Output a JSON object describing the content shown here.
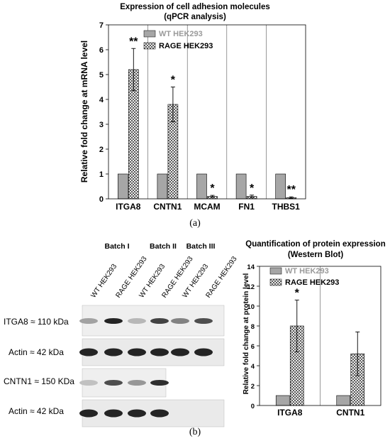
{
  "panel_a_label": "(a)",
  "panel_b_label": "(b)",
  "chart_data": [
    {
      "type": "bar",
      "title": "Expression of cell adhesion molecules",
      "subtitle": "(qPCR analysis)",
      "xlabel": "",
      "ylabel": "Relative fold change at mRNA level",
      "categories": [
        "ITGA8",
        "CNTN1",
        "MCAM",
        "FN1",
        "THBS1"
      ],
      "ylim": [
        0,
        7
      ],
      "yticks": [
        "0",
        "1",
        "2",
        "3",
        "4",
        "5",
        "6",
        "7"
      ],
      "series": [
        {
          "name": "WT HEK293",
          "values": [
            1,
            1,
            1,
            1,
            1
          ],
          "errors": [
            0,
            0,
            0,
            0,
            0
          ],
          "color": "#a6a6a6",
          "name_color": "#9a9a9a"
        },
        {
          "name": "RAGE HEK293",
          "values": [
            5.2,
            3.8,
            0.1,
            0.1,
            0.05
          ],
          "errors": [
            0.85,
            0.7,
            0.04,
            0.05,
            0.03
          ],
          "pattern": "crosshatch",
          "name_color": "#000000"
        }
      ],
      "annotations": [
        "**",
        "*",
        "*",
        "*",
        "**"
      ],
      "grid": "vertical separators between categories",
      "legend": "top-left"
    },
    {
      "type": "bar",
      "title": "Quantification of protein expression",
      "subtitle": "(Western Blot)",
      "xlabel": "",
      "ylabel": "Relative fold change at protein level",
      "categories": [
        "ITGA8",
        "CNTN1"
      ],
      "ylim": [
        0,
        14
      ],
      "yticks": [
        "0",
        "2",
        "4",
        "6",
        "8",
        "10",
        "12",
        "14"
      ],
      "series": [
        {
          "name": "WT HEK293",
          "values": [
            1,
            1
          ],
          "errors": [
            0,
            0
          ],
          "color": "#a6a6a6",
          "name_color": "#9a9a9a"
        },
        {
          "name": "RAGE HEK293",
          "values": [
            8.0,
            5.2
          ],
          "errors": [
            2.6,
            2.2
          ],
          "pattern": "crosshatch",
          "name_color": "#000000"
        }
      ],
      "annotations": [
        "*",
        ""
      ],
      "grid": "vertical separator between categories",
      "legend": "top-left"
    }
  ],
  "western_blot": {
    "batch_labels": [
      "Batch I",
      "Batch II",
      "Batch III"
    ],
    "lane_labels": [
      "WT HEK293",
      "RAGE HEK293",
      "WT HEK293",
      "RAGE HEK293",
      "WT HEK293",
      "RAGE HEK293"
    ],
    "rows": [
      {
        "label": "ITGA8 ≈ 110 kDa",
        "band_intensity": [
          0.35,
          0.95,
          0.25,
          0.8,
          0.5,
          0.75
        ]
      },
      {
        "label": "Actin ≈ 42 kDa",
        "band_intensity": [
          0.95,
          0.95,
          0.95,
          0.95,
          0.95,
          0.95
        ]
      },
      {
        "label": "CNTN1 ≈ 150 KDa",
        "band_intensity": [
          0.2,
          0.75,
          0.4,
          0.9
        ]
      },
      {
        "label": "Actin ≈ 42 kDa",
        "band_intensity": [
          0.95,
          0.95,
          0.95,
          0.95
        ]
      }
    ]
  }
}
